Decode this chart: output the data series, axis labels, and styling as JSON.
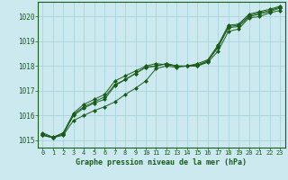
{
  "title": "Graphe pression niveau de la mer (hPa)",
  "bg_color": "#cce9f0",
  "grid_color": "#aad4dc",
  "line_color": "#1a5c1a",
  "marker_color": "#1a5c1a",
  "text_color": "#1a5c1a",
  "xlim": [
    -0.5,
    23.5
  ],
  "ylim": [
    1014.7,
    1020.6
  ],
  "yticks": [
    1015,
    1016,
    1017,
    1018,
    1019,
    1020
  ],
  "xticks": [
    0,
    1,
    2,
    3,
    4,
    5,
    6,
    7,
    8,
    9,
    10,
    11,
    12,
    13,
    14,
    15,
    16,
    17,
    18,
    19,
    20,
    21,
    22,
    23
  ],
  "series": [
    [
      1015.2,
      1015.1,
      1015.2,
      1015.8,
      1016.0,
      1016.2,
      1016.35,
      1016.55,
      1016.85,
      1017.1,
      1017.4,
      1017.9,
      1018.0,
      1017.95,
      1018.0,
      1018.0,
      1018.15,
      1018.6,
      1019.4,
      1019.5,
      1019.95,
      1020.0,
      1020.15,
      1020.25
    ],
    [
      1015.2,
      1015.1,
      1015.25,
      1016.0,
      1016.3,
      1016.5,
      1016.65,
      1017.2,
      1017.45,
      1017.7,
      1017.95,
      1018.0,
      1018.1,
      1018.0,
      1018.0,
      1018.0,
      1018.2,
      1018.75,
      1019.55,
      1019.6,
      1020.0,
      1020.1,
      1020.2,
      1020.35
    ],
    [
      1015.25,
      1015.1,
      1015.25,
      1016.05,
      1016.35,
      1016.55,
      1016.75,
      1017.25,
      1017.45,
      1017.7,
      1017.95,
      1018.0,
      1018.1,
      1018.0,
      1018.0,
      1018.05,
      1018.2,
      1018.8,
      1019.6,
      1019.65,
      1020.05,
      1020.15,
      1020.25,
      1020.38
    ],
    [
      1015.3,
      1015.12,
      1015.3,
      1016.1,
      1016.45,
      1016.65,
      1016.85,
      1017.4,
      1017.6,
      1017.8,
      1018.0,
      1018.1,
      1018.05,
      1018.0,
      1018.0,
      1018.1,
      1018.25,
      1018.85,
      1019.65,
      1019.7,
      1020.1,
      1020.2,
      1020.3,
      1020.42
    ]
  ]
}
